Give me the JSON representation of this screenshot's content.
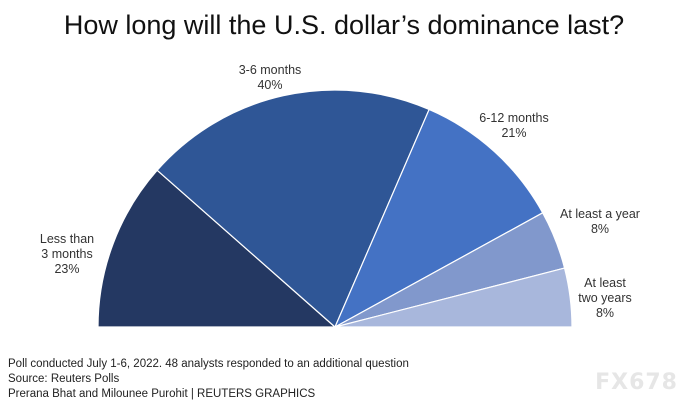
{
  "title": "How long will the U.S. dollar’s dominance last?",
  "chart_data": {
    "type": "pie",
    "variant": "semicircle",
    "categories": [
      "Less than 3 months",
      "3-6 months",
      "6-12 months",
      "At least a year",
      "At least two years"
    ],
    "values": [
      23,
      40,
      21,
      8,
      8
    ],
    "labels": [
      {
        "lines": [
          "Less than",
          "3 months",
          "23%"
        ]
      },
      {
        "lines": [
          "3-6 months",
          "40%"
        ]
      },
      {
        "lines": [
          "6-12 months",
          "21%"
        ]
      },
      {
        "lines": [
          "At least a year",
          "8%"
        ]
      },
      {
        "lines": [
          "At least",
          "two years",
          "8%"
        ]
      }
    ],
    "colors": [
      "#243862",
      "#2f5696",
      "#4472c4",
      "#8198cc",
      "#a8b7dc"
    ]
  },
  "footnotes": {
    "line1": "Poll conducted July 1-6, 2022. 48 analysts responded to an additional question",
    "line2": "Source: Reuters Polls",
    "line3": "Prerana Bhat and Milounee Purohit | REUTERS GRAPHICS"
  },
  "watermark": "FX678"
}
